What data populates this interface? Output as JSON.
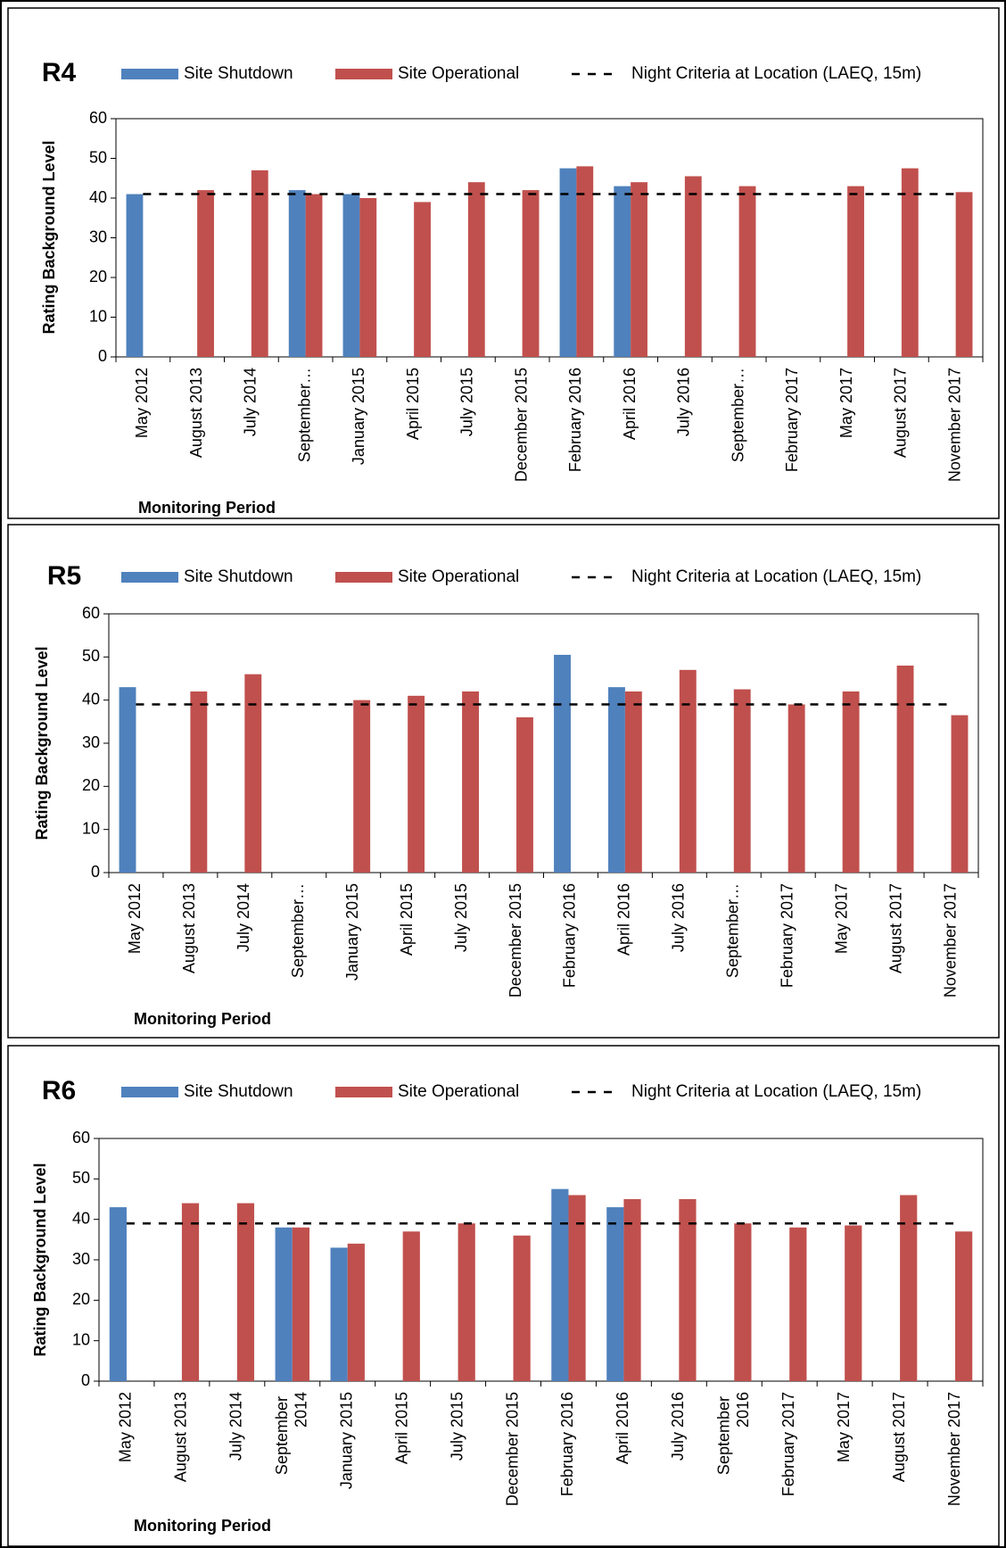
{
  "chart_data": [
    {
      "type": "bar",
      "title": "R4",
      "y_label": "Rating Background Level",
      "x_label": "Monitoring Period",
      "categories": [
        "May 2012",
        "August 2013",
        "July 2014",
        "September…",
        "January 2015",
        "April 2015",
        "July 2015",
        "December 2015",
        "February 2016",
        "April 2016",
        "July 2016",
        "September…",
        "February 2017",
        "May 2017",
        "August 2017",
        "November 2017"
      ],
      "series": [
        {
          "name": "Site Shutdown",
          "color": "#4f81bd",
          "values": [
            41,
            null,
            null,
            42,
            41,
            null,
            null,
            null,
            47.5,
            43,
            null,
            null,
            null,
            null,
            null,
            null
          ]
        },
        {
          "name": "Site Operational",
          "color": "#c0504d",
          "values": [
            null,
            42,
            47,
            41,
            40,
            39,
            44,
            42,
            48,
            44,
            45.5,
            43,
            null,
            43,
            47.5,
            41.5
          ]
        },
        {
          "name": "Night Criteria at Location (LAEQ, 15m)",
          "color": "#000000",
          "type": "line",
          "style": "dashed",
          "values": [
            41,
            41,
            41,
            41,
            41,
            41,
            41,
            41,
            41,
            41,
            41,
            41,
            41,
            41,
            41,
            41
          ]
        }
      ],
      "ylim": [
        0,
        60
      ],
      "yticks": [
        0,
        10,
        20,
        30,
        40,
        50,
        60
      ],
      "grid": false
    },
    {
      "type": "bar",
      "title": "R5",
      "y_label": "Rating Background Level",
      "x_label": "Monitoring Period",
      "categories": [
        "May 2012",
        "August 2013",
        "July 2014",
        "September…",
        "January 2015",
        "April 2015",
        "July 2015",
        "December 2015",
        "February 2016",
        "April 2016",
        "July 2016",
        "September…",
        "February 2017",
        "May 2017",
        "August 2017",
        "November 2017"
      ],
      "series": [
        {
          "name": "Site Shutdown",
          "color": "#4f81bd",
          "values": [
            43,
            null,
            null,
            null,
            null,
            null,
            null,
            null,
            50.5,
            43,
            null,
            null,
            null,
            null,
            null,
            null
          ]
        },
        {
          "name": "Site Operational",
          "color": "#c0504d",
          "values": [
            null,
            42,
            46,
            null,
            40,
            41,
            42,
            36,
            null,
            42,
            47,
            42.5,
            39,
            42,
            48,
            36.5
          ]
        },
        {
          "name": "Night Criteria at Location (LAEQ, 15m)",
          "color": "#000000",
          "type": "line",
          "style": "dashed",
          "values": [
            39,
            39,
            39,
            39,
            39,
            39,
            39,
            39,
            39,
            39,
            39,
            39,
            39,
            39,
            39,
            39
          ]
        }
      ],
      "ylim": [
        0,
        60
      ],
      "yticks": [
        0,
        10,
        20,
        30,
        40,
        50,
        60
      ],
      "grid": false
    },
    {
      "type": "bar",
      "title": "R6",
      "y_label": "Rating Background Level",
      "x_label": "Monitoring Period",
      "categories": [
        "May 2012",
        "August 2013",
        "July 2014",
        "September 2014",
        "January 2015",
        "April 2015",
        "July 2015",
        "December 2015",
        "February 2016",
        "April 2016",
        "July 2016",
        "September 2016",
        "February 2017",
        "May 2017",
        "August 2017",
        "November 2017"
      ],
      "series": [
        {
          "name": "Site Shutdown",
          "color": "#4f81bd",
          "values": [
            43,
            null,
            null,
            38,
            33,
            null,
            null,
            null,
            47.5,
            43,
            null,
            null,
            null,
            null,
            null,
            null
          ]
        },
        {
          "name": "Site Operational",
          "color": "#c0504d",
          "values": [
            null,
            44,
            44,
            38,
            34,
            37,
            39,
            36,
            46,
            45,
            45,
            39,
            38,
            38.5,
            46,
            37
          ]
        },
        {
          "name": "Night Criteria at Location (LAEQ, 15m)",
          "color": "#000000",
          "type": "line",
          "style": "dashed",
          "values": [
            39,
            39,
            39,
            39,
            39,
            39,
            39,
            39,
            39,
            39,
            39,
            39,
            39,
            39,
            39,
            39
          ]
        }
      ],
      "ylim": [
        0,
        60
      ],
      "yticks": [
        0,
        10,
        20,
        30,
        40,
        50,
        60
      ],
      "grid": false
    }
  ]
}
